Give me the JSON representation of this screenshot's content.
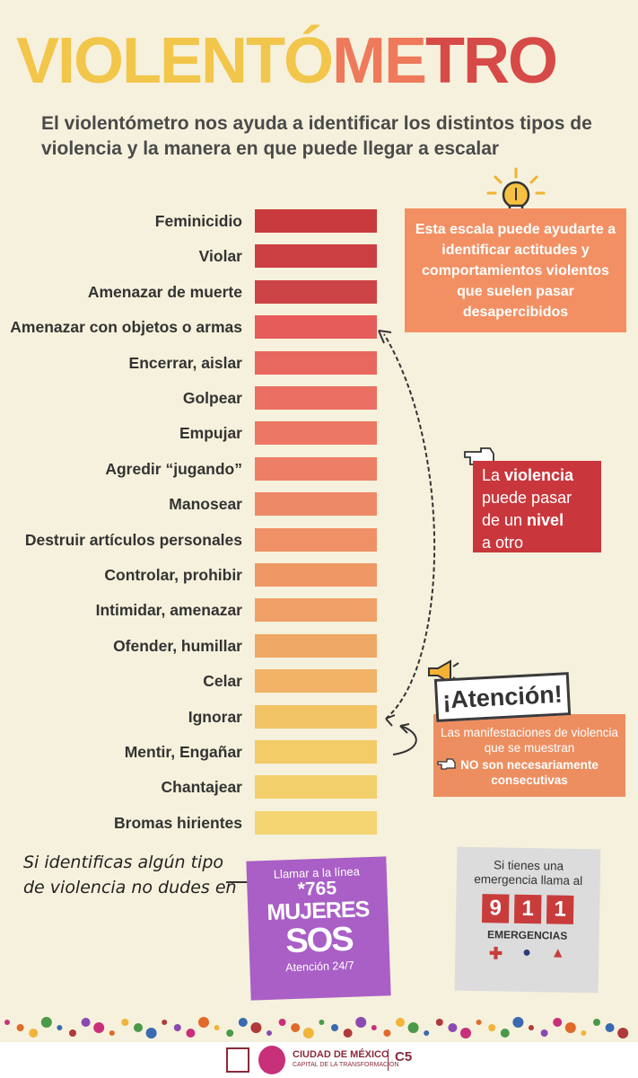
{
  "title": {
    "parts": [
      {
        "text": "VIOLENTÓ",
        "color": "#f2c64b"
      },
      {
        "text": "ME",
        "color": "#ee7a5b"
      },
      {
        "text": "TRO",
        "color": "#d64a48"
      }
    ]
  },
  "subtitle": "El violentómetro nos ayuda a identificar los distintos tipos de violencia y la manera en que puede llegar a escalar",
  "scale": {
    "items": [
      {
        "label": "Feminicidio",
        "color": "#c93a3d"
      },
      {
        "label": "Violar",
        "color": "#cb3f42"
      },
      {
        "label": "Amenazar de muerte",
        "color": "#cd4446"
      },
      {
        "label": "Amenazar con objetos o armas",
        "color": "#e55c5b"
      },
      {
        "label": "Encerrar, aislar",
        "color": "#e8675f"
      },
      {
        "label": "Golpear",
        "color": "#eb6f62"
      },
      {
        "label": "Empujar",
        "color": "#ec7765"
      },
      {
        "label": "Agredir “jugando”",
        "color": "#ed7f66"
      },
      {
        "label": "Manosear",
        "color": "#ee8967"
      },
      {
        "label": "Destruir artículos personales",
        "color": "#ef9066"
      },
      {
        "label": "Controlar, prohibir",
        "color": "#ef9866"
      },
      {
        "label": "Intimidar, amenazar",
        "color": "#f0a066"
      },
      {
        "label": "Ofender, humillar",
        "color": "#f0a866"
      },
      {
        "label": "Celar",
        "color": "#f1b366"
      },
      {
        "label": "Ignorar",
        "color": "#f3c465"
      },
      {
        "label": "Mentir, Engañar",
        "color": "#f3cb67"
      },
      {
        "label": "Chantajear",
        "color": "#f4d06c"
      },
      {
        "label": "Bromas hirientes",
        "color": "#f5d472"
      }
    ]
  },
  "info_box_1": "Esta escala puede ayudarte a identificar actitudes y comportamientos violentos que suelen pasar desapercibidos",
  "info_box_2": {
    "line1_a": "La ",
    "line1_b": "violencia",
    "line2": "puede pasar",
    "line3_a": "de un ",
    "line3_b": "nivel",
    "line4": "a otro"
  },
  "attention": {
    "title": "¡Atención!",
    "text": "Las manifestaciones de violencia que se muestran",
    "bold": "NO son necesariamente consecutivas"
  },
  "handwritten": {
    "line1": "Si identificas algún tipo",
    "line2": "de violencia no dudes en"
  },
  "mujeres_sos": {
    "call": "Llamar a la línea",
    "number": "*765",
    "name": "MUJERES",
    "sos": "SOS",
    "hours": "Atención 24/7"
  },
  "emergency": {
    "line1": "Si tienes una",
    "line2": "emergencia llama al",
    "digits": [
      "9",
      "1",
      "1"
    ],
    "label": "EMERGENCIAS"
  },
  "footer": {
    "city": "CIUDAD DE MÉXICO",
    "tagline": "CAPITAL DE LA TRANSFORMACIÓN",
    "c5": "C5"
  }
}
